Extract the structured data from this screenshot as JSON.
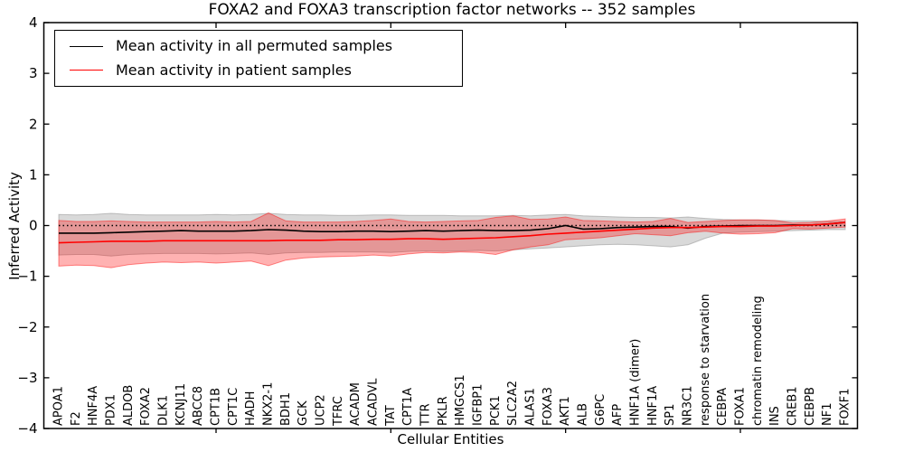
{
  "chart_data": {
    "type": "line",
    "title": "FOXA2 and FOXA3 transcription factor networks -- 352 samples",
    "xlabel": "Cellular Entities",
    "ylabel": "Inferred Activity",
    "ylim": [
      -4,
      4
    ],
    "ytick_values": [
      4,
      3,
      2,
      1,
      0,
      -1,
      -2,
      -3,
      -4
    ],
    "ytick_labels": [
      "4",
      "3",
      "2",
      "1",
      "0",
      "−1",
      "−2",
      "−3",
      "−4"
    ],
    "xtick_mark_indices": [
      9,
      19,
      29,
      39
    ],
    "grid": false,
    "legend_position": "upper left",
    "zero_reference_line": 0,
    "categories": [
      "APOA1",
      "F2",
      "HNF4A",
      "PDX1",
      "ALDOB",
      "FOXA2",
      "DLK1",
      "KCNJ11",
      "ABCC8",
      "CPT1B",
      "CPT1C",
      "HADH",
      "NKX2-1",
      "BDH1",
      "GCK",
      "UCP2",
      "TFRC",
      "ACADM",
      "ACADVL",
      "TAT",
      "CPT1A",
      "TTR",
      "PKLR",
      "HMGCS1",
      "IGFBP1",
      "PCK1",
      "SLC2A2",
      "ALAS1",
      "FOXA3",
      "AKT1",
      "ALB",
      "G6PC",
      "AFP",
      "HNF1A (dimer)",
      "HNF1A",
      "SP1",
      "NR3C1",
      "response to starvation",
      "CEBPA",
      "FOXA1",
      "chromatin remodeling",
      "INS",
      "CREB1",
      "CEBPB",
      "NF1",
      "FOXF1"
    ],
    "series": [
      {
        "name": "Mean activity in all permuted samples",
        "color": "#000000",
        "band_color": "rgba(128,128,128,0.30)",
        "band_edge_color": "rgba(128,128,128,0.45)",
        "values": [
          -0.15,
          -0.15,
          -0.15,
          -0.14,
          -0.13,
          -0.12,
          -0.11,
          -0.1,
          -0.11,
          -0.11,
          -0.11,
          -0.1,
          -0.08,
          -0.09,
          -0.11,
          -0.12,
          -0.12,
          -0.11,
          -0.11,
          -0.12,
          -0.11,
          -0.1,
          -0.11,
          -0.1,
          -0.09,
          -0.1,
          -0.1,
          -0.09,
          -0.06,
          0.0,
          -0.07,
          -0.06,
          -0.04,
          -0.03,
          -0.02,
          -0.02,
          -0.05,
          -0.02,
          -0.01,
          0.0,
          0.0,
          0.0,
          0.01,
          0.01,
          0.03,
          0.06
        ],
        "band_upper": [
          0.22,
          0.21,
          0.22,
          0.24,
          0.22,
          0.21,
          0.21,
          0.21,
          0.21,
          0.22,
          0.21,
          0.22,
          0.24,
          0.22,
          0.21,
          0.21,
          0.2,
          0.2,
          0.21,
          0.21,
          0.2,
          0.2,
          0.2,
          0.19,
          0.19,
          0.19,
          0.2,
          0.19,
          0.21,
          0.22,
          0.19,
          0.18,
          0.17,
          0.16,
          0.16,
          0.15,
          0.17,
          0.14,
          0.12,
          0.11,
          0.11,
          0.1,
          0.09,
          0.09,
          0.08,
          0.08
        ],
        "band_lower": [
          -0.58,
          -0.57,
          -0.57,
          -0.6,
          -0.57,
          -0.56,
          -0.55,
          -0.55,
          -0.55,
          -0.56,
          -0.55,
          -0.54,
          -0.57,
          -0.54,
          -0.53,
          -0.53,
          -0.52,
          -0.52,
          -0.52,
          -0.53,
          -0.51,
          -0.5,
          -0.51,
          -0.5,
          -0.49,
          -0.5,
          -0.48,
          -0.46,
          -0.44,
          -0.42,
          -0.4,
          -0.38,
          -0.37,
          -0.38,
          -0.4,
          -0.42,
          -0.38,
          -0.25,
          -0.15,
          -0.13,
          -0.12,
          -0.11,
          -0.1,
          -0.09,
          -0.08,
          -0.08
        ]
      },
      {
        "name": "Mean activity in patient samples",
        "color": "#ff0000",
        "band_color": "rgba(255,0,0,0.30)",
        "band_edge_color": "rgba(255,0,0,0.45)",
        "values": [
          -0.34,
          -0.33,
          -0.32,
          -0.31,
          -0.31,
          -0.31,
          -0.3,
          -0.3,
          -0.3,
          -0.3,
          -0.3,
          -0.3,
          -0.3,
          -0.29,
          -0.29,
          -0.29,
          -0.28,
          -0.28,
          -0.27,
          -0.27,
          -0.26,
          -0.26,
          -0.27,
          -0.26,
          -0.25,
          -0.24,
          -0.22,
          -0.2,
          -0.17,
          -0.15,
          -0.13,
          -0.11,
          -0.09,
          -0.07,
          -0.05,
          -0.04,
          -0.04,
          -0.03,
          -0.02,
          -0.02,
          -0.01,
          -0.01,
          0.0,
          0.01,
          0.03,
          0.06
        ],
        "band_upper": [
          0.1,
          0.08,
          0.08,
          0.09,
          0.08,
          0.07,
          0.07,
          0.07,
          0.07,
          0.08,
          0.07,
          0.08,
          0.25,
          0.09,
          0.07,
          0.07,
          0.07,
          0.08,
          0.1,
          0.13,
          0.08,
          0.07,
          0.08,
          0.09,
          0.1,
          0.16,
          0.19,
          0.12,
          0.13,
          0.17,
          0.1,
          0.09,
          0.08,
          0.07,
          0.08,
          0.14,
          0.06,
          0.08,
          0.1,
          0.11,
          0.11,
          0.1,
          0.05,
          0.06,
          0.09,
          0.13
        ],
        "band_lower": [
          -0.8,
          -0.78,
          -0.79,
          -0.83,
          -0.77,
          -0.74,
          -0.72,
          -0.73,
          -0.72,
          -0.74,
          -0.72,
          -0.7,
          -0.79,
          -0.68,
          -0.64,
          -0.62,
          -0.61,
          -0.6,
          -0.58,
          -0.6,
          -0.56,
          -0.53,
          -0.54,
          -0.52,
          -0.53,
          -0.57,
          -0.48,
          -0.42,
          -0.38,
          -0.28,
          -0.26,
          -0.24,
          -0.2,
          -0.16,
          -0.18,
          -0.2,
          -0.14,
          -0.11,
          -0.15,
          -0.17,
          -0.16,
          -0.14,
          -0.06,
          -0.07,
          -0.05,
          -0.03
        ]
      }
    ],
    "colors": {
      "axes": "#000000",
      "background": "#ffffff",
      "zero_line": "#000000"
    }
  }
}
